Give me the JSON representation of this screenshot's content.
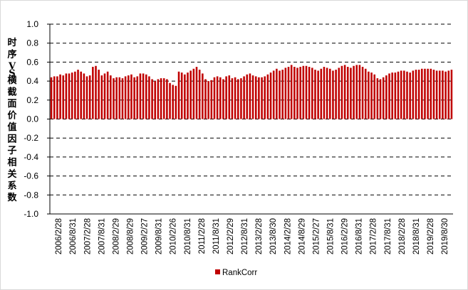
{
  "chart_data": {
    "type": "bar",
    "title": "",
    "ylabel": "时序VS横截面价值因子相关系数",
    "xlabel": "",
    "ylim": [
      -1.0,
      1.0
    ],
    "yticks": [
      "1.0",
      "0.8",
      "0.6",
      "0.4",
      "0.2",
      "0.0",
      "-0.2",
      "-0.4",
      "-0.6",
      "-0.8",
      "-1.0"
    ],
    "grid": true,
    "grid_style": "dashed",
    "bar_color": "#C00000",
    "legend_position": "bottom",
    "x_tick_labels": [
      "2006/2/28",
      "2006/8/31",
      "2007/2/28",
      "2007/8/31",
      "2008/2/29",
      "2008/8/29",
      "2009/2/27",
      "2009/8/31",
      "2010/2/26",
      "2010/8/31",
      "2011/2/28",
      "2011/8/31",
      "2012/2/29",
      "2012/8/31",
      "2013/2/28",
      "2013/8/30",
      "2014/2/28",
      "2014/8/29",
      "2015/2/27",
      "2015/8/31",
      "2016/2/29",
      "2016/8/31",
      "2017/2/28",
      "2017/8/31",
      "2018/2/28",
      "2018/8/31",
      "2019/2/28",
      "2019/8/30"
    ],
    "series": [
      {
        "name": "RankCorr",
        "values": [
          0.44,
          0.45,
          0.45,
          0.47,
          0.46,
          0.48,
          0.48,
          0.49,
          0.5,
          0.52,
          0.5,
          0.48,
          0.45,
          0.46,
          0.55,
          0.56,
          0.52,
          0.46,
          0.48,
          0.5,
          0.46,
          0.43,
          0.44,
          0.44,
          0.43,
          0.45,
          0.46,
          0.47,
          0.44,
          0.45,
          0.48,
          0.48,
          0.47,
          0.45,
          0.42,
          0.4,
          0.42,
          0.43,
          0.43,
          0.42,
          0.38,
          0.36,
          0.35,
          0.5,
          0.49,
          0.47,
          0.49,
          0.51,
          0.53,
          0.55,
          0.52,
          0.48,
          0.42,
          0.4,
          0.41,
          0.44,
          0.45,
          0.44,
          0.42,
          0.45,
          0.46,
          0.43,
          0.44,
          0.42,
          0.43,
          0.45,
          0.47,
          0.48,
          0.46,
          0.45,
          0.44,
          0.44,
          0.45,
          0.47,
          0.49,
          0.51,
          0.53,
          0.51,
          0.52,
          0.54,
          0.55,
          0.57,
          0.55,
          0.54,
          0.55,
          0.56,
          0.56,
          0.55,
          0.54,
          0.52,
          0.51,
          0.53,
          0.55,
          0.54,
          0.53,
          0.51,
          0.52,
          0.54,
          0.56,
          0.57,
          0.55,
          0.54,
          0.56,
          0.57,
          0.57,
          0.55,
          0.53,
          0.5,
          0.49,
          0.47,
          0.43,
          0.42,
          0.44,
          0.46,
          0.48,
          0.49,
          0.49,
          0.5,
          0.51,
          0.51,
          0.5,
          0.49,
          0.51,
          0.52,
          0.52,
          0.53,
          0.53,
          0.53,
          0.53,
          0.52,
          0.51,
          0.51,
          0.51,
          0.5,
          0.51,
          0.52
        ]
      }
    ]
  }
}
